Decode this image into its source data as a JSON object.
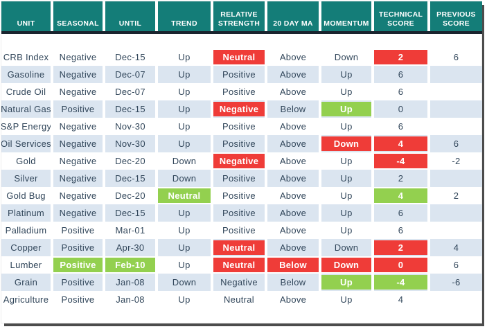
{
  "colors": {
    "header_bg": "#147d78",
    "header_text": "#ffffff",
    "divider_dark": "#1a242e",
    "row_stripe": "#dbe5f0",
    "body_text": "#31465a",
    "highlight_red": "#ef3c38",
    "highlight_green": "#93d04f",
    "frame_shadow": "#4c4c4c"
  },
  "chart_data": {
    "type": "table",
    "title": "Commodity technical scores table",
    "columns": [
      "UNIT",
      "SEASONAL",
      "UNTIL",
      "TREND",
      "RELATIVE STRENGTH",
      "20 DAY MA",
      "MOMENTUM",
      "TECHNICAL SCORE",
      "PREVIOUS SCORE"
    ],
    "rows": [
      {
        "cells": [
          "CRB Index",
          "Negative",
          "Dec-15",
          "Up",
          "Neutral",
          "Above",
          "Down",
          "2",
          "6"
        ],
        "highlights": {
          "4": "red",
          "7": "red"
        }
      },
      {
        "cells": [
          "Gasoline",
          "Negative",
          "Dec-07",
          "Up",
          "Positive",
          "Above",
          "Up",
          "6",
          ""
        ],
        "highlights": {}
      },
      {
        "cells": [
          "Crude Oil",
          "Negative",
          "Dec-07",
          "Up",
          "Positive",
          "Above",
          "Up",
          "6",
          ""
        ],
        "highlights": {}
      },
      {
        "cells": [
          "Natural Gas",
          "Positive",
          "Dec-15",
          "Up",
          "Negative",
          "Below",
          "Up",
          "0",
          ""
        ],
        "highlights": {
          "4": "red",
          "6": "green"
        }
      },
      {
        "cells": [
          "S&P Energy",
          "Negative",
          "Nov-30",
          "Up",
          "Positive",
          "Above",
          "Up",
          "6",
          ""
        ],
        "highlights": {}
      },
      {
        "cells": [
          "Oil Services",
          "Negative",
          "Nov-30",
          "Up",
          "Positive",
          "Above",
          "Down",
          "4",
          "6"
        ],
        "highlights": {
          "6": "red",
          "7": "red"
        }
      },
      {
        "cells": [
          "Gold",
          "Negative",
          "Dec-20",
          "Down",
          "Negative",
          "Above",
          "Up",
          "-4",
          "-2"
        ],
        "highlights": {
          "4": "red",
          "7": "red"
        }
      },
      {
        "cells": [
          "Silver",
          "Negative",
          "Dec-15",
          "Down",
          "Positive",
          "Above",
          "Up",
          "2",
          ""
        ],
        "highlights": {}
      },
      {
        "cells": [
          "Gold Bug",
          "Negative",
          "Dec-20",
          "Neutral",
          "Positive",
          "Above",
          "Up",
          "4",
          "2"
        ],
        "highlights": {
          "3": "green",
          "7": "green"
        }
      },
      {
        "cells": [
          "Platinum",
          "Negative",
          "Dec-15",
          "Up",
          "Positive",
          "Above",
          "Up",
          "6",
          ""
        ],
        "highlights": {}
      },
      {
        "cells": [
          "Palladium",
          "Positive",
          "Mar-01",
          "Up",
          "Positive",
          "Above",
          "Up",
          "6",
          ""
        ],
        "highlights": {}
      },
      {
        "cells": [
          "Copper",
          "Positive",
          "Apr-30",
          "Up",
          "Neutral",
          "Above",
          "Down",
          "2",
          "4"
        ],
        "highlights": {
          "4": "red",
          "7": "red"
        }
      },
      {
        "cells": [
          "Lumber",
          "Positive",
          "Feb-10",
          "Up",
          "Neutral",
          "Below",
          "Down",
          "0",
          "6"
        ],
        "highlights": {
          "1": "green",
          "2": "green",
          "4": "red",
          "5": "red",
          "6": "red",
          "7": "red"
        }
      },
      {
        "cells": [
          "Grain",
          "Positive",
          "Jan-08",
          "Down",
          "Negative",
          "Below",
          "Up",
          "-4",
          "-6"
        ],
        "highlights": {
          "6": "green",
          "7": "green"
        }
      },
      {
        "cells": [
          "Agriculture",
          "Positive",
          "Jan-08",
          "Up",
          "Neutral",
          "Above",
          "Up",
          "4",
          ""
        ],
        "highlights": {}
      }
    ],
    "layout": {
      "stripe_rows": "even data rows (2nd, 4th, ...) are light blue",
      "header_divider": "dark navy rule under header row",
      "blank_spacer_row_below_header": true
    }
  }
}
